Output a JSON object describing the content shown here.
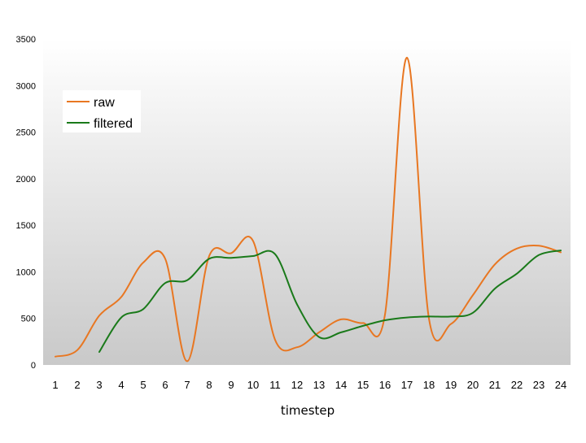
{
  "chart_data": {
    "type": "line",
    "title": "",
    "xlabel": "timestep",
    "ylabel": "",
    "categories": [
      "1",
      "2",
      "3",
      "4",
      "5",
      "6",
      "7",
      "8",
      "9",
      "10",
      "11",
      "12",
      "13",
      "14",
      "15",
      "16",
      "17",
      "18",
      "19",
      "20",
      "21",
      "22",
      "23",
      "24"
    ],
    "ylim": [
      0,
      3500
    ],
    "yticks": [
      0,
      500,
      1000,
      1500,
      2000,
      2500,
      3000,
      3500
    ],
    "grid": false,
    "legend_position": "top-left",
    "series": [
      {
        "name": "raw",
        "color": "#e87722",
        "values": [
          90,
          160,
          530,
          730,
          1100,
          1140,
          40,
          1170,
          1200,
          1330,
          270,
          190,
          350,
          490,
          450,
          540,
          3300,
          500,
          440,
          750,
          1080,
          1250,
          1280,
          1210
        ]
      },
      {
        "name": "filtered",
        "color": "#1a7a1a",
        "values": [
          null,
          null,
          140,
          510,
          600,
          880,
          910,
          1140,
          1150,
          1170,
          1190,
          650,
          300,
          350,
          420,
          480,
          510,
          520,
          520,
          560,
          820,
          980,
          1180,
          1230
        ]
      }
    ]
  }
}
